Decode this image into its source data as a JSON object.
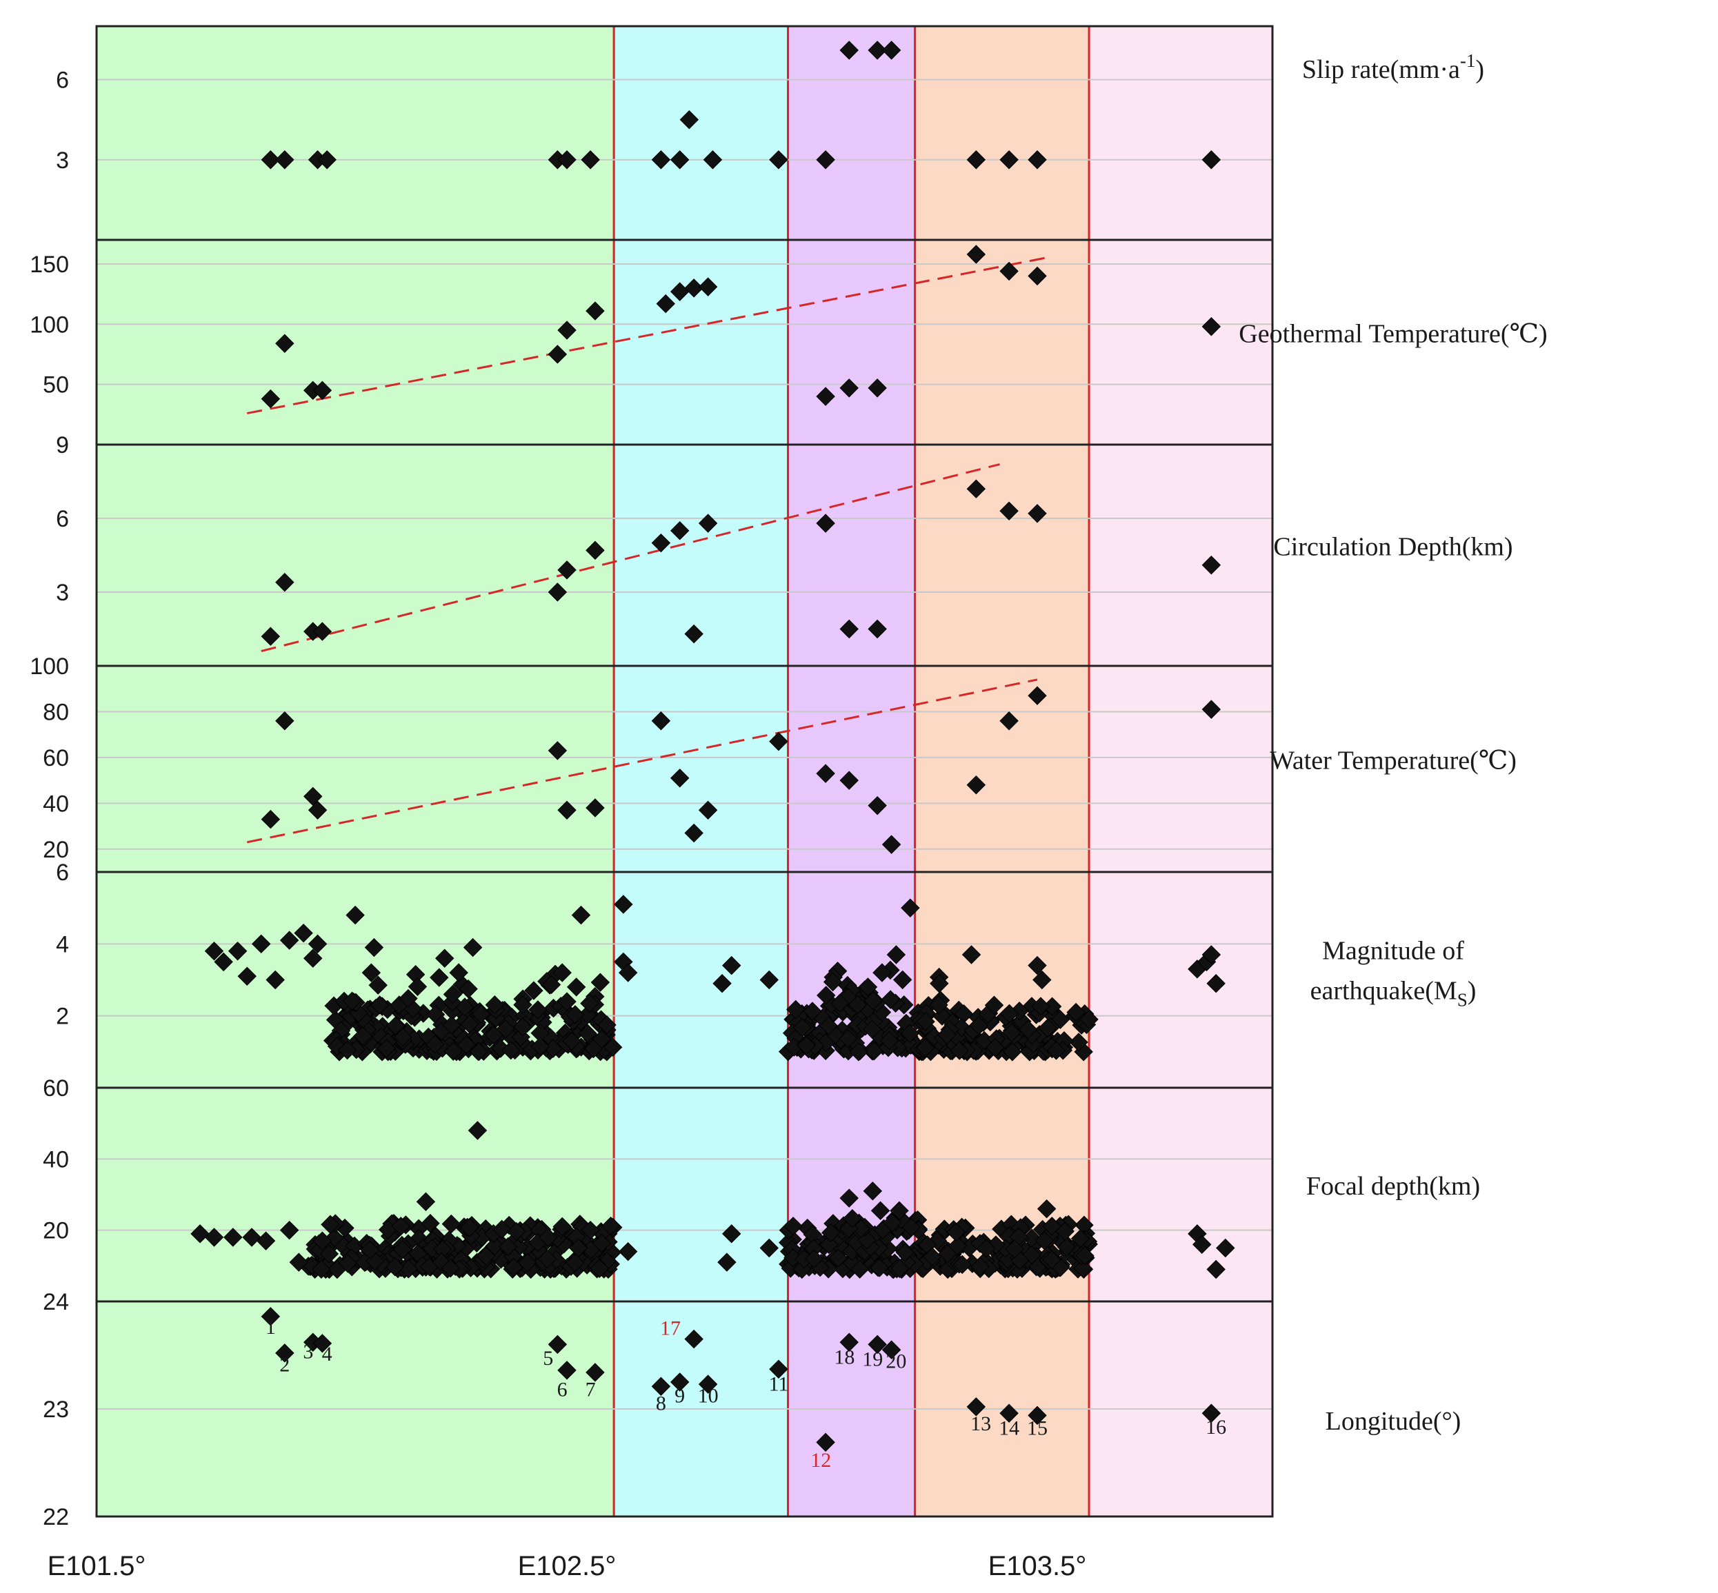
{
  "chart_data": {
    "type": "scatter",
    "x_axis": {
      "range": [
        101.5,
        104.0
      ],
      "tick_labels": [
        {
          "value": 101.5,
          "label": "E101.5°"
        },
        {
          "value": 102.5,
          "label": "E102.5°"
        },
        {
          "value": 103.5,
          "label": "E103.5°"
        }
      ]
    },
    "zones": [
      {
        "name": "zone-green",
        "from": 101.5,
        "to": 102.6,
        "color": "#ccfccc"
      },
      {
        "name": "zone-cyan",
        "from": 102.6,
        "to": 102.97,
        "color": "#c4fcfc"
      },
      {
        "name": "zone-purple",
        "from": 102.97,
        "to": 103.24,
        "color": "#e8c8fc"
      },
      {
        "name": "zone-orange",
        "from": 103.24,
        "to": 103.61,
        "color": "#fcd9c4"
      },
      {
        "name": "zone-pink",
        "from": 103.61,
        "to": 104.0,
        "color": "#fce6f4"
      }
    ],
    "colors": {
      "marker": "#111111",
      "trend": "#d62728",
      "zone_border": "#d62728",
      "panel_border": "#222222",
      "grid": "#c8c8c8"
    },
    "panels": [
      {
        "key": "slip",
        "label_lines": [
          "Slip rate(mm·a",
          "-1",
          ")"
        ],
        "ylim": [
          0,
          8
        ],
        "yticks": [
          3,
          6
        ],
        "points": [
          [
            101.87,
            3
          ],
          [
            101.9,
            3
          ],
          [
            101.97,
            3
          ],
          [
            101.99,
            3
          ],
          [
            102.48,
            3
          ],
          [
            102.5,
            3
          ],
          [
            102.55,
            3
          ],
          [
            102.7,
            3
          ],
          [
            102.74,
            3
          ],
          [
            102.76,
            4.5
          ],
          [
            102.81,
            3
          ],
          [
            102.95,
            3
          ],
          [
            103.05,
            3
          ],
          [
            103.1,
            7.1
          ],
          [
            103.16,
            7.1
          ],
          [
            103.19,
            7.1
          ],
          [
            103.37,
            3
          ],
          [
            103.44,
            3
          ],
          [
            103.5,
            3
          ],
          [
            103.87,
            3
          ]
        ]
      },
      {
        "key": "geotherm",
        "label_lines": [
          "Geothermal Temperature(℃)"
        ],
        "ylim": [
          0,
          170
        ],
        "yticks": [
          50,
          100,
          150
        ],
        "points": [
          [
            101.87,
            38
          ],
          [
            101.9,
            84
          ],
          [
            101.96,
            45
          ],
          [
            101.98,
            45
          ],
          [
            102.48,
            75
          ],
          [
            102.5,
            95
          ],
          [
            102.56,
            111
          ],
          [
            102.71,
            117
          ],
          [
            102.74,
            127
          ],
          [
            102.77,
            130
          ],
          [
            102.8,
            131
          ],
          [
            103.05,
            40
          ],
          [
            103.1,
            47
          ],
          [
            103.16,
            47
          ],
          [
            103.37,
            158
          ],
          [
            103.44,
            144
          ],
          [
            103.5,
            140
          ],
          [
            103.87,
            98
          ]
        ],
        "trend": [
          [
            101.82,
            26
          ],
          [
            103.53,
            156
          ]
        ]
      },
      {
        "key": "circ",
        "label_lines": [
          "Circulation Depth(km)"
        ],
        "ylim": [
          0,
          9
        ],
        "yticks": [
          3,
          6,
          9
        ],
        "points": [
          [
            101.87,
            1.2
          ],
          [
            101.9,
            3.4
          ],
          [
            101.96,
            1.4
          ],
          [
            101.98,
            1.4
          ],
          [
            102.48,
            3.0
          ],
          [
            102.5,
            3.9
          ],
          [
            102.56,
            4.7
          ],
          [
            102.7,
            5.0
          ],
          [
            102.74,
            5.5
          ],
          [
            102.77,
            1.3
          ],
          [
            102.8,
            5.8
          ],
          [
            103.05,
            5.8
          ],
          [
            103.1,
            1.5
          ],
          [
            103.16,
            1.5
          ],
          [
            103.37,
            7.2
          ],
          [
            103.44,
            6.3
          ],
          [
            103.5,
            6.2
          ],
          [
            103.87,
            4.1
          ]
        ],
        "trend": [
          [
            101.85,
            0.6
          ],
          [
            103.42,
            8.2
          ]
        ]
      },
      {
        "key": "water",
        "label_lines": [
          "Water Temperature(℃)"
        ],
        "ylim": [
          10,
          100
        ],
        "yticks": [
          20,
          40,
          60,
          80,
          100
        ],
        "points": [
          [
            101.87,
            33
          ],
          [
            101.9,
            76
          ],
          [
            101.96,
            43
          ],
          [
            101.97,
            37
          ],
          [
            102.48,
            63
          ],
          [
            102.5,
            37
          ],
          [
            102.56,
            38
          ],
          [
            102.7,
            76
          ],
          [
            102.74,
            51
          ],
          [
            102.77,
            27
          ],
          [
            102.8,
            37
          ],
          [
            102.95,
            67
          ],
          [
            103.05,
            53
          ],
          [
            103.1,
            50
          ],
          [
            103.16,
            39
          ],
          [
            103.19,
            22
          ],
          [
            103.37,
            48
          ],
          [
            103.44,
            76
          ],
          [
            103.5,
            87
          ],
          [
            103.87,
            81
          ]
        ],
        "trend": [
          [
            101.82,
            23
          ],
          [
            103.5,
            94
          ]
        ]
      },
      {
        "key": "mag",
        "label_lines": [
          "Magnitude of",
          "earthquake(M",
          "S",
          ")"
        ],
        "ylim": [
          0,
          6
        ],
        "yticks": [
          2,
          4,
          6
        ],
        "points": [
          [
            101.75,
            3.8
          ],
          [
            101.77,
            3.5
          ],
          [
            101.8,
            3.8
          ],
          [
            101.82,
            3.1
          ],
          [
            101.85,
            4.0
          ],
          [
            101.88,
            3.0
          ],
          [
            101.91,
            4.1
          ],
          [
            101.94,
            4.3
          ],
          [
            101.96,
            3.6
          ],
          [
            101.97,
            4.0
          ],
          [
            102.05,
            4.8
          ],
          [
            102.09,
            3.9
          ],
          [
            102.24,
            3.6
          ],
          [
            102.27,
            3.2
          ],
          [
            102.3,
            3.9
          ],
          [
            102.49,
            3.2
          ],
          [
            102.52,
            2.8
          ],
          [
            102.53,
            4.8
          ],
          [
            102.62,
            5.1
          ],
          [
            102.62,
            3.5
          ],
          [
            102.63,
            3.2
          ],
          [
            102.83,
            2.9
          ],
          [
            102.85,
            3.4
          ],
          [
            102.93,
            3.0
          ],
          [
            103.14,
            2.8
          ],
          [
            103.17,
            3.2
          ],
          [
            103.2,
            3.7
          ],
          [
            103.23,
            5.0
          ],
          [
            103.36,
            3.7
          ],
          [
            103.5,
            3.4
          ],
          [
            103.51,
            3.0
          ],
          [
            103.61,
            1.9
          ],
          [
            103.84,
            3.3
          ],
          [
            103.86,
            3.5
          ],
          [
            103.88,
            2.9
          ],
          [
            103.87,
            3.7
          ]
        ],
        "clusters": [
          [
            102.0,
            102.6,
            1.0,
            2.3,
            220,
            7
          ],
          [
            102.0,
            102.6,
            2.3,
            3.2,
            30,
            8
          ],
          [
            102.97,
            103.61,
            1.0,
            2.3,
            240,
            9
          ],
          [
            103.05,
            103.3,
            2.3,
            3.3,
            28,
            10
          ]
        ]
      },
      {
        "key": "focal",
        "label_lines": [
          "Focal depth(km)"
        ],
        "ylim": [
          0,
          60
        ],
        "yticks": [
          20,
          40,
          60
        ],
        "points": [
          [
            101.72,
            19
          ],
          [
            101.75,
            18
          ],
          [
            101.79,
            18
          ],
          [
            101.83,
            18
          ],
          [
            101.86,
            17
          ],
          [
            101.91,
            20
          ],
          [
            101.93,
            11
          ],
          [
            101.98,
            17
          ],
          [
            102.2,
            28
          ],
          [
            102.31,
            48
          ],
          [
            102.46,
            18
          ],
          [
            102.49,
            21
          ],
          [
            102.55,
            20
          ],
          [
            102.63,
            14
          ],
          [
            102.84,
            11
          ],
          [
            102.85,
            19
          ],
          [
            102.93,
            15
          ],
          [
            103.1,
            29
          ],
          [
            103.15,
            31
          ],
          [
            103.52,
            26
          ],
          [
            103.84,
            19
          ],
          [
            103.85,
            16
          ],
          [
            103.88,
            9
          ],
          [
            103.9,
            15
          ]
        ],
        "clusters": [
          [
            101.95,
            102.6,
            9,
            22,
            260,
            11
          ],
          [
            102.97,
            103.61,
            9,
            22,
            260,
            12
          ],
          [
            103.08,
            103.25,
            20,
            27,
            20,
            13
          ]
        ]
      },
      {
        "key": "lon",
        "label_lines": [
          "Longitude(°)"
        ],
        "ylim": [
          22,
          24
        ],
        "yticks": [
          22,
          23,
          24
        ],
        "points": [
          [
            101.87,
            23.86
          ],
          [
            101.9,
            23.52
          ],
          [
            101.96,
            23.62
          ],
          [
            101.98,
            23.61
          ],
          [
            102.48,
            23.6
          ],
          [
            102.5,
            23.36
          ],
          [
            102.56,
            23.34
          ],
          [
            102.7,
            23.21
          ],
          [
            102.74,
            23.25
          ],
          [
            102.77,
            23.65
          ],
          [
            102.8,
            23.23
          ],
          [
            102.95,
            23.37
          ],
          [
            103.05,
            22.69
          ],
          [
            103.1,
            23.62
          ],
          [
            103.16,
            23.6
          ],
          [
            103.19,
            23.55
          ],
          [
            103.37,
            23.02
          ],
          [
            103.44,
            22.96
          ],
          [
            103.5,
            22.94
          ],
          [
            103.87,
            22.96
          ]
        ],
        "point_labels": [
          {
            "x": 101.87,
            "y": 23.7,
            "text": "1",
            "red": false
          },
          {
            "x": 101.9,
            "y": 23.35,
            "text": "2",
            "red": false
          },
          {
            "x": 101.95,
            "y": 23.47,
            "text": "3",
            "red": false
          },
          {
            "x": 101.99,
            "y": 23.45,
            "text": "4",
            "red": false
          },
          {
            "x": 102.46,
            "y": 23.41,
            "text": "5",
            "red": false
          },
          {
            "x": 102.49,
            "y": 23.12,
            "text": "6",
            "red": false
          },
          {
            "x": 102.55,
            "y": 23.12,
            "text": "7",
            "red": false
          },
          {
            "x": 102.7,
            "y": 22.99,
            "text": "8",
            "red": false
          },
          {
            "x": 102.74,
            "y": 23.06,
            "text": "9",
            "red": false
          },
          {
            "x": 102.8,
            "y": 23.06,
            "text": "10",
            "red": false
          },
          {
            "x": 102.95,
            "y": 23.17,
            "text": "11",
            "red": false
          },
          {
            "x": 103.04,
            "y": 22.46,
            "text": "12",
            "red": true
          },
          {
            "x": 102.72,
            "y": 23.69,
            "text": "17",
            "red": true
          },
          {
            "x": 103.09,
            "y": 23.42,
            "text": "18",
            "red": false
          },
          {
            "x": 103.15,
            "y": 23.4,
            "text": "19",
            "red": false
          },
          {
            "x": 103.2,
            "y": 23.38,
            "text": "20",
            "red": false
          },
          {
            "x": 103.38,
            "y": 22.8,
            "text": "13",
            "red": false
          },
          {
            "x": 103.44,
            "y": 22.76,
            "text": "14",
            "red": false
          },
          {
            "x": 103.5,
            "y": 22.76,
            "text": "15",
            "red": false
          },
          {
            "x": 103.88,
            "y": 22.77,
            "text": "16",
            "red": false
          }
        ]
      }
    ]
  }
}
